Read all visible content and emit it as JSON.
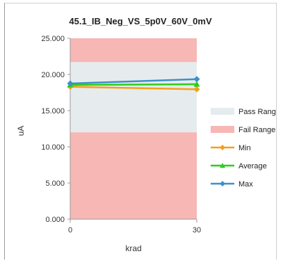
{
  "chart_data": {
    "type": "line",
    "title": "45.1_IB_Neg_VS_5p0V_60V_0mV",
    "xlabel": "krad",
    "ylabel": "uA",
    "x": [
      0,
      30
    ],
    "x_tick_labels": [
      "0",
      "30"
    ],
    "ylim": [
      0,
      25
    ],
    "y_tick_labels": [
      "0.000",
      "5.000",
      "10.000",
      "15.000",
      "20.000",
      "25.000"
    ],
    "pass_range": [
      12.0,
      21.7
    ],
    "fail_range_upper": [
      21.7,
      25
    ],
    "fail_range_lower": [
      0,
      12.0
    ],
    "series": [
      {
        "name": "Min",
        "values": [
          18.3,
          17.95
        ],
        "color": "#f5a01a",
        "marker": "diamond"
      },
      {
        "name": "Average",
        "values": [
          18.55,
          18.65
        ],
        "color": "#2ecc1a",
        "marker": "triangle"
      },
      {
        "name": "Max",
        "values": [
          18.75,
          19.35
        ],
        "color": "#3d8fc9",
        "marker": "diamond"
      }
    ],
    "legend": {
      "placement": "right",
      "items": [
        {
          "label": "Pass Range",
          "kind": "band",
          "color": "#e6eced"
        },
        {
          "label": "Fail Range",
          "kind": "band",
          "color": "#f6b7b5"
        },
        {
          "label": "Min",
          "kind": "line",
          "color": "#f5a01a",
          "marker": "diamond"
        },
        {
          "label": "Average",
          "kind": "line",
          "color": "#2ecc1a",
          "marker": "triangle"
        },
        {
          "label": "Max",
          "kind": "line",
          "color": "#3d8fc9",
          "marker": "diamond"
        }
      ]
    },
    "colors": {
      "fail": "#f6b7b5",
      "pass": "#e6eced",
      "axis": "#9a9a9a"
    }
  }
}
